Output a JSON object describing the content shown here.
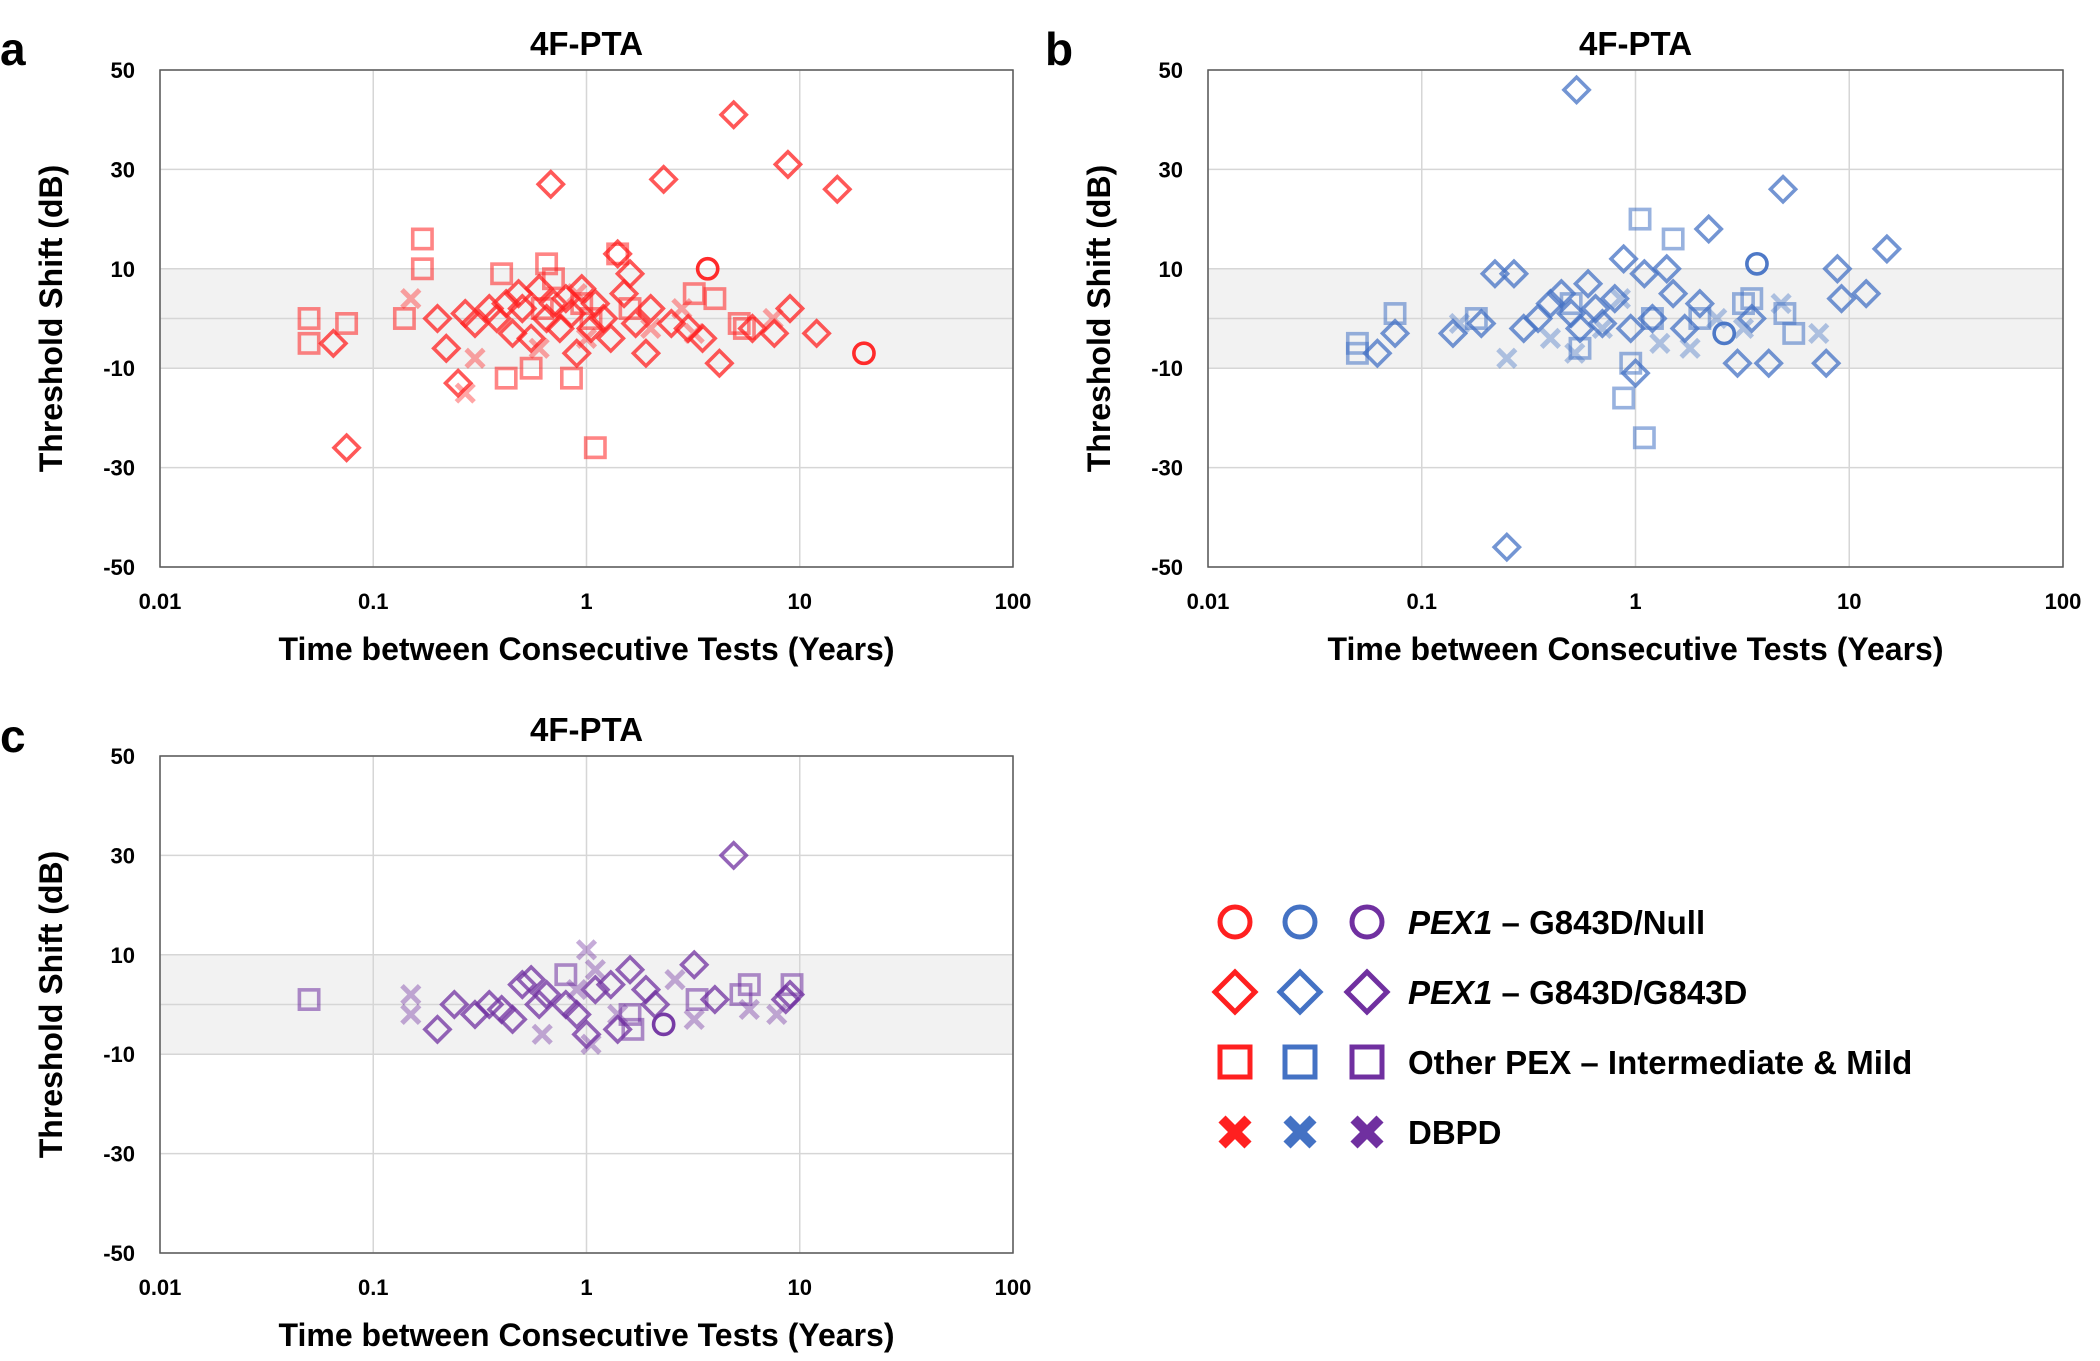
{
  "chart_data": [
    {
      "panel": "a",
      "type": "scatter",
      "title": "4F-PTA",
      "xlabel": "Time between Consecutive Tests (Years)",
      "ylabel": "Threshold Shift (dB)",
      "xscale": "log",
      "xlim": [
        0.01,
        100
      ],
      "ylim": [
        -50,
        50
      ],
      "xticks": [
        0.01,
        0.1,
        1,
        10,
        100
      ],
      "xtick_labels": [
        "0.01",
        "0.1",
        "1",
        "10",
        "100"
      ],
      "yticks": [
        -50,
        -30,
        -10,
        10,
        30,
        50
      ],
      "ytick_labels": [
        "-50",
        "-30",
        "-10",
        "10",
        "30",
        "50"
      ],
      "band": [
        -10,
        10
      ],
      "color": "#ff2020",
      "series": [
        {
          "name": "PEX1 – G843D/Null",
          "marker": "circle",
          "points": [
            [
              3.7,
              10
            ],
            [
              20,
              -7
            ]
          ]
        },
        {
          "name": "PEX1 – G843D/G843D",
          "marker": "diamond",
          "points": [
            [
              0.065,
              -5
            ],
            [
              0.075,
              -26
            ],
            [
              0.2,
              0
            ],
            [
              0.22,
              -6
            ],
            [
              0.25,
              -13
            ],
            [
              0.27,
              1
            ],
            [
              0.3,
              -1
            ],
            [
              0.35,
              2
            ],
            [
              0.38,
              0
            ],
            [
              0.42,
              3
            ],
            [
              0.45,
              -3
            ],
            [
              0.48,
              5
            ],
            [
              0.5,
              2
            ],
            [
              0.55,
              -4
            ],
            [
              0.6,
              6
            ],
            [
              0.65,
              0
            ],
            [
              0.68,
              27
            ],
            [
              0.7,
              3
            ],
            [
              0.75,
              -2
            ],
            [
              0.8,
              4
            ],
            [
              0.85,
              1
            ],
            [
              0.9,
              -7
            ],
            [
              0.95,
              6
            ],
            [
              1.05,
              -2
            ],
            [
              1.1,
              3
            ],
            [
              1.2,
              0
            ],
            [
              1.3,
              -4
            ],
            [
              1.4,
              13
            ],
            [
              1.5,
              5
            ],
            [
              1.6,
              9
            ],
            [
              1.7,
              -1
            ],
            [
              1.9,
              -7
            ],
            [
              2.0,
              2
            ],
            [
              2.3,
              28
            ],
            [
              2.5,
              -1
            ],
            [
              3.0,
              -2
            ],
            [
              3.5,
              -4
            ],
            [
              4.2,
              -9
            ],
            [
              4.9,
              41
            ],
            [
              6.0,
              -2
            ],
            [
              7.6,
              -3
            ],
            [
              8.8,
              31
            ],
            [
              9.0,
              2
            ],
            [
              12,
              -3
            ],
            [
              15,
              26
            ]
          ]
        },
        {
          "name": "Other PEX – Intermediate & Mild",
          "marker": "square",
          "points": [
            [
              0.05,
              0
            ],
            [
              0.05,
              -5
            ],
            [
              0.075,
              -1
            ],
            [
              0.14,
              0
            ],
            [
              0.17,
              16
            ],
            [
              0.17,
              10
            ],
            [
              0.4,
              9
            ],
            [
              0.42,
              -12
            ],
            [
              0.55,
              -10
            ],
            [
              0.62,
              2
            ],
            [
              0.65,
              11
            ],
            [
              0.7,
              8
            ],
            [
              0.85,
              -12
            ],
            [
              0.95,
              3
            ],
            [
              1.05,
              0
            ],
            [
              1.1,
              -26
            ],
            [
              1.4,
              13
            ],
            [
              1.6,
              2
            ],
            [
              3.2,
              5
            ],
            [
              4.0,
              4
            ],
            [
              5.2,
              -1
            ],
            [
              5.5,
              -2
            ]
          ]
        },
        {
          "name": "DBPD",
          "marker": "x",
          "points": [
            [
              0.15,
              4
            ],
            [
              0.27,
              -15
            ],
            [
              0.3,
              -8
            ],
            [
              0.6,
              -6
            ],
            [
              0.9,
              5
            ],
            [
              1.0,
              -4
            ],
            [
              2.0,
              -2
            ],
            [
              2.8,
              2
            ],
            [
              3.2,
              -3
            ],
            [
              7.5,
              0
            ]
          ]
        }
      ]
    },
    {
      "panel": "b",
      "type": "scatter",
      "title": "4F-PTA",
      "xlabel": "Time between Consecutive Tests (Years)",
      "ylabel": "Threshold Shift (dB)",
      "xscale": "log",
      "xlim": [
        0.01,
        100
      ],
      "ylim": [
        -50,
        50
      ],
      "xticks": [
        0.01,
        0.1,
        1,
        10,
        100
      ],
      "xtick_labels": [
        "0.01",
        "0.1",
        "1",
        "10",
        "100"
      ],
      "yticks": [
        -50,
        -30,
        -10,
        10,
        30,
        50
      ],
      "ytick_labels": [
        "-50",
        "-30",
        "-10",
        "10",
        "30",
        "50"
      ],
      "band": [
        -10,
        10
      ],
      "color": "#4472c4",
      "series": [
        {
          "name": "PEX1 – G843D/Null",
          "marker": "circle",
          "points": [
            [
              2.6,
              -3
            ],
            [
              3.7,
              11
            ]
          ]
        },
        {
          "name": "PEX1 – G843D/G843D",
          "marker": "diamond",
          "points": [
            [
              0.062,
              -7
            ],
            [
              0.075,
              -3
            ],
            [
              0.14,
              -3
            ],
            [
              0.19,
              -1
            ],
            [
              0.22,
              9
            ],
            [
              0.25,
              -46
            ],
            [
              0.27,
              9
            ],
            [
              0.3,
              -2
            ],
            [
              0.35,
              0
            ],
            [
              0.4,
              3
            ],
            [
              0.45,
              5
            ],
            [
              0.5,
              1
            ],
            [
              0.53,
              46
            ],
            [
              0.55,
              -2
            ],
            [
              0.6,
              7
            ],
            [
              0.65,
              2
            ],
            [
              0.7,
              -1
            ],
            [
              0.8,
              4
            ],
            [
              0.88,
              12
            ],
            [
              0.95,
              -2
            ],
            [
              1.0,
              -11
            ],
            [
              1.1,
              9
            ],
            [
              1.2,
              0
            ],
            [
              1.4,
              10
            ],
            [
              1.5,
              5
            ],
            [
              1.7,
              -2
            ],
            [
              2.0,
              3
            ],
            [
              2.2,
              18
            ],
            [
              3.0,
              -9
            ],
            [
              3.5,
              0
            ],
            [
              4.2,
              -9
            ],
            [
              4.9,
              26
            ],
            [
              7.8,
              -9
            ],
            [
              8.8,
              10
            ],
            [
              9.2,
              4
            ],
            [
              12,
              5
            ],
            [
              15,
              14
            ]
          ]
        },
        {
          "name": "Other PEX – Intermediate & Mild",
          "marker": "square",
          "points": [
            [
              0.05,
              -5
            ],
            [
              0.05,
              -7
            ],
            [
              0.075,
              1
            ],
            [
              0.18,
              0
            ],
            [
              0.5,
              3
            ],
            [
              0.55,
              -6
            ],
            [
              0.88,
              -16
            ],
            [
              0.95,
              -9
            ],
            [
              1.05,
              20
            ],
            [
              1.1,
              -24
            ],
            [
              1.2,
              0
            ],
            [
              1.5,
              16
            ],
            [
              2.0,
              0
            ],
            [
              3.2,
              3
            ],
            [
              3.5,
              4
            ],
            [
              5.0,
              1
            ],
            [
              5.5,
              -3
            ]
          ]
        },
        {
          "name": "DBPD",
          "marker": "x",
          "points": [
            [
              0.15,
              -1
            ],
            [
              0.25,
              -8
            ],
            [
              0.4,
              -4
            ],
            [
              0.52,
              -7
            ],
            [
              0.7,
              -2
            ],
            [
              0.85,
              4
            ],
            [
              1.3,
              -5
            ],
            [
              1.8,
              -6
            ],
            [
              2.4,
              0
            ],
            [
              3.2,
              -2
            ],
            [
              4.8,
              3
            ],
            [
              7.2,
              -3
            ]
          ]
        }
      ]
    },
    {
      "panel": "c",
      "type": "scatter",
      "title": "4F-PTA",
      "xlabel": "Time between Consecutive Tests (Years)",
      "ylabel": "Threshold Shift (dB)",
      "xscale": "log",
      "xlim": [
        0.01,
        100
      ],
      "ylim": [
        -50,
        50
      ],
      "xticks": [
        0.01,
        0.1,
        1,
        10,
        100
      ],
      "xtick_labels": [
        "0.01",
        "0.1",
        "1",
        "10",
        "100"
      ],
      "yticks": [
        -50,
        -30,
        -10,
        10,
        30,
        50
      ],
      "ytick_labels": [
        "-50",
        "-30",
        "-10",
        "10",
        "30",
        "50"
      ],
      "band": [
        -10,
        10
      ],
      "color": "#7030a0",
      "series": [
        {
          "name": "PEX1 – G843D/Null",
          "marker": "circle",
          "points": [
            [
              2.3,
              -4
            ]
          ]
        },
        {
          "name": "PEX1 – G843D/G843D",
          "marker": "diamond",
          "points": [
            [
              0.2,
              -5
            ],
            [
              0.24,
              0
            ],
            [
              0.3,
              -2
            ],
            [
              0.35,
              0
            ],
            [
              0.4,
              -1
            ],
            [
              0.45,
              -3
            ],
            [
              0.5,
              4
            ],
            [
              0.55,
              5
            ],
            [
              0.6,
              0
            ],
            [
              0.65,
              2
            ],
            [
              0.8,
              0
            ],
            [
              0.9,
              -2
            ],
            [
              1.0,
              -6
            ],
            [
              1.1,
              3
            ],
            [
              1.3,
              4
            ],
            [
              1.4,
              -5
            ],
            [
              1.6,
              7
            ],
            [
              1.9,
              3
            ],
            [
              2.1,
              0
            ],
            [
              3.2,
              8
            ],
            [
              4.0,
              1
            ],
            [
              4.9,
              30
            ],
            [
              8.6,
              1
            ],
            [
              9.0,
              2
            ]
          ]
        },
        {
          "name": "Other PEX – Intermediate & Mild",
          "marker": "square",
          "points": [
            [
              0.05,
              1
            ],
            [
              0.8,
              6
            ],
            [
              1.6,
              -2
            ],
            [
              1.65,
              -5
            ],
            [
              3.3,
              1
            ],
            [
              5.3,
              2
            ],
            [
              5.8,
              4
            ],
            [
              9.2,
              4
            ]
          ]
        },
        {
          "name": "DBPD",
          "marker": "x",
          "points": [
            [
              0.15,
              2
            ],
            [
              0.15,
              -2
            ],
            [
              0.62,
              -6
            ],
            [
              0.9,
              3
            ],
            [
              1.0,
              11
            ],
            [
              1.05,
              -8
            ],
            [
              1.1,
              7
            ],
            [
              1.4,
              -2
            ],
            [
              2.6,
              5
            ],
            [
              3.2,
              -3
            ],
            [
              5.8,
              -1
            ],
            [
              7.8,
              -2
            ]
          ]
        }
      ]
    }
  ],
  "legend": {
    "colors": [
      "#ff2020",
      "#4472c4",
      "#7030a0"
    ],
    "items": [
      {
        "marker": "circle",
        "italic": "PEX1",
        "rest": " – G843D/Null"
      },
      {
        "marker": "diamond",
        "italic": "PEX1",
        "rest": " – G843D/G843D"
      },
      {
        "marker": "square",
        "italic": "",
        "rest": "Other PEX – Intermediate & Mild"
      },
      {
        "marker": "x",
        "italic": "",
        "rest": "DBPD"
      }
    ]
  }
}
